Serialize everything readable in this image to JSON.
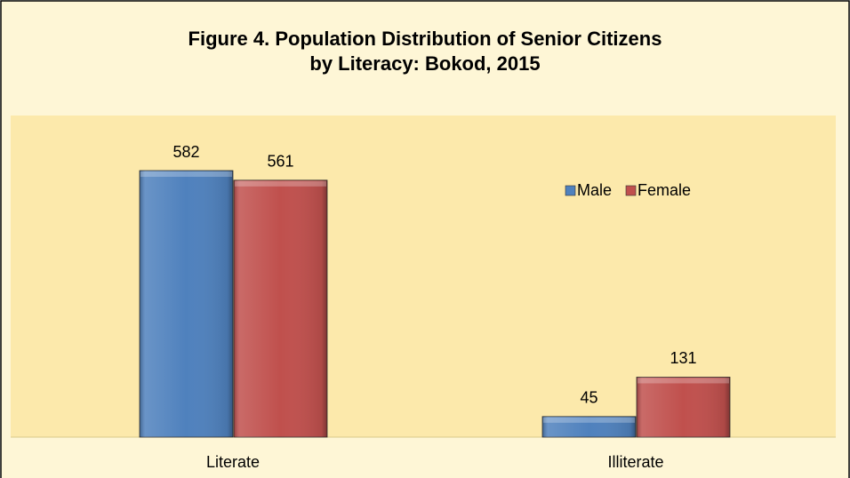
{
  "chart_data": {
    "type": "bar",
    "title": "Figure 4. Population Distribution of Senior Citizens",
    "subtitle": "by Literacy: Bokod, 2015",
    "categories": [
      "Literate",
      "Illiterate"
    ],
    "series": [
      {
        "name": "Male",
        "color": "#4f81bd",
        "values": [
          582,
          45
        ]
      },
      {
        "name": "Female",
        "color": "#c0504d",
        "values": [
          561,
          131
        ]
      }
    ]
  }
}
